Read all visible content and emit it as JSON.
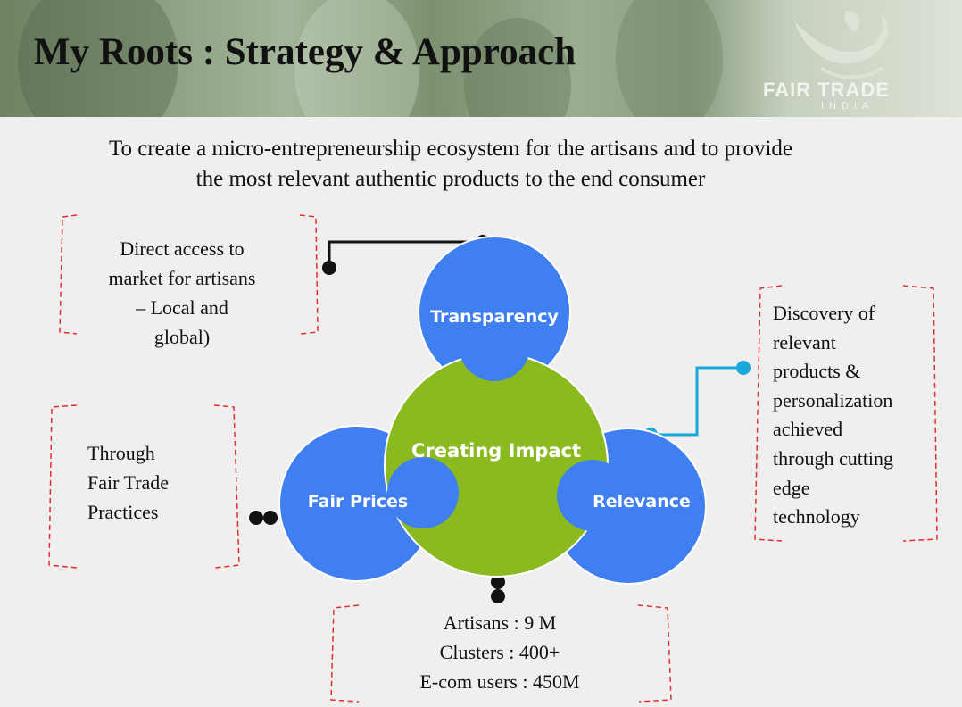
{
  "header": {
    "title": "My Roots : Strategy & Approach",
    "logo_text": "FAIR TRADE",
    "logo_subtext": "INDIA"
  },
  "subtitle": {
    "line1": "To create a micro-entrepreneurship ecosystem for the artisans  and to provide",
    "line2": "the most relevant authentic products to the end consumer"
  },
  "diagram": {
    "center": "Creating Impact",
    "nodes": {
      "top": "Transparency",
      "left": "Fair Prices",
      "right": "Relevance"
    }
  },
  "boxes": {
    "top_left": [
      "Direct access to",
      "market for artisans",
      "– Local and",
      "global)"
    ],
    "left": [
      "Through",
      "Fair Trade",
      "Practices"
    ],
    "right": [
      "Discovery of",
      "relevant",
      "products &",
      "personalization",
      "achieved",
      "through cutting",
      "edge",
      "technology"
    ],
    "bottom": [
      "Artisans : 9 M",
      "Clusters : 400+",
      "E-com users : 450M"
    ]
  },
  "colors": {
    "blue_node": "#3f7ff0",
    "green_center": "#8aba1f",
    "bracket_red": "#e0312f",
    "connector_blue": "#18a8dc",
    "connector_black": "#111111"
  }
}
